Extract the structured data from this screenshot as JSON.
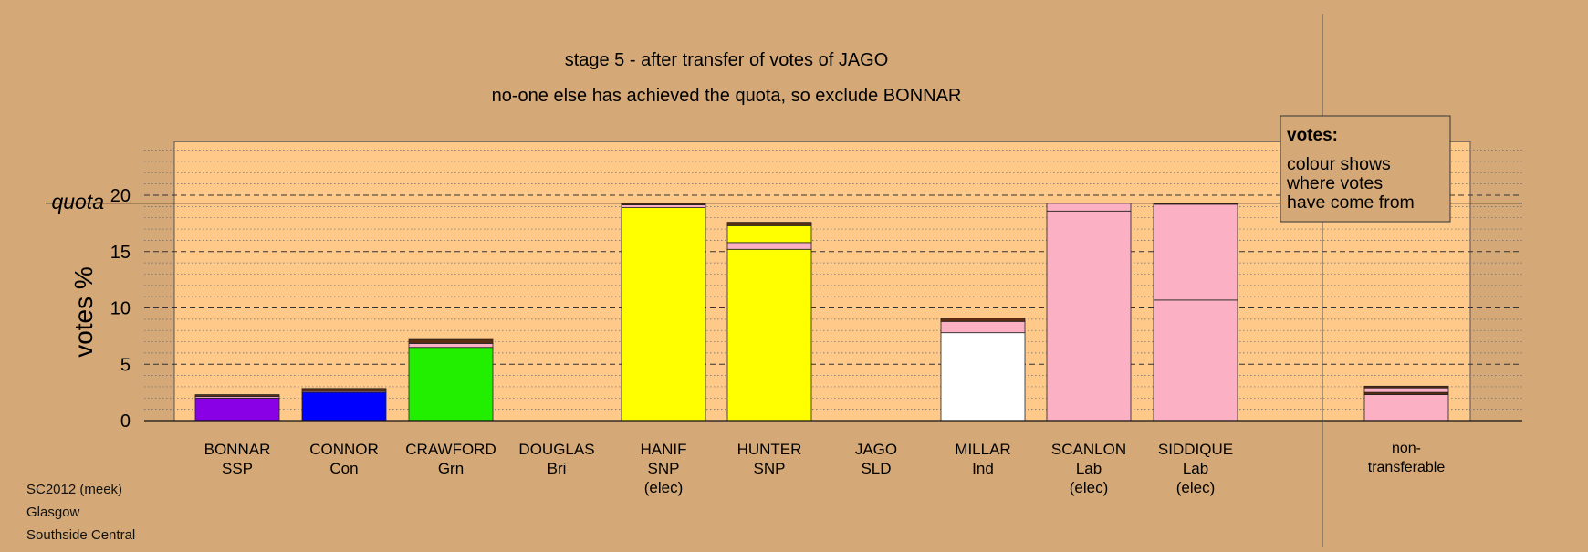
{
  "title": "stage 5 - after transfer of votes of JAGO",
  "subtitle": "no-one else has achieved the quota, so exclude BONNAR",
  "quota_label": "quota",
  "ylabel": "votes %",
  "legend": {
    "heading": "votes:",
    "lines": [
      "colour shows",
      "where votes",
      "have come from"
    ]
  },
  "footer": [
    "SC2012 (meek)",
    "Glasgow",
    "Southside Central"
  ],
  "colors": {
    "background": "#d4a977",
    "plot_area": "#ffc98a",
    "SSP": "#8a00e6",
    "Con": "#0000ff",
    "Grn": "#22ee00",
    "SNP": "#ffff00",
    "Ind": "#ffffff",
    "Lab": "#fbb1c3",
    "Bri": "#5a2d12",
    "SLD": "#ffa500"
  },
  "chart_data": {
    "type": "bar",
    "stacked": true,
    "ylabel": "votes %",
    "ylim": [
      0,
      25
    ],
    "yticks": [
      0,
      5,
      10,
      15,
      20
    ],
    "quota": 19.3,
    "grid": "dashed horizontal lines, dotted minor lines",
    "categories": [
      {
        "name": "BONNAR",
        "party": "SSP",
        "elected": false,
        "segments": [
          {
            "from": "SSP",
            "value": 2.0
          },
          {
            "from": "Lab",
            "value": 0.15
          },
          {
            "from": "Bri",
            "value": 0.15
          }
        ]
      },
      {
        "name": "CONNOR",
        "party": "Con",
        "elected": false,
        "segments": [
          {
            "from": "Con",
            "value": 2.5
          },
          {
            "from": "Lab",
            "value": 0.1
          },
          {
            "from": "Bri",
            "value": 0.25
          }
        ]
      },
      {
        "name": "CRAWFORD",
        "party": "Grn",
        "elected": false,
        "segments": [
          {
            "from": "Grn",
            "value": 6.5
          },
          {
            "from": "Lab",
            "value": 0.35
          },
          {
            "from": "Bri",
            "value": 0.35
          }
        ]
      },
      {
        "name": "DOUGLAS",
        "party": "Bri",
        "elected": false,
        "segments": []
      },
      {
        "name": "HANIF",
        "party": "SNP",
        "elected": true,
        "segments": [
          {
            "from": "SNP",
            "value": 18.9
          },
          {
            "from": "Lab",
            "value": 0.25
          },
          {
            "from": "Bri",
            "value": 0.15
          }
        ]
      },
      {
        "name": "HUNTER",
        "party": "SNP",
        "elected": false,
        "segments": [
          {
            "from": "SNP",
            "value": 15.2
          },
          {
            "from": "Lab",
            "value": 0.6
          },
          {
            "from": "SNP",
            "value": 1.5
          },
          {
            "from": "Bri",
            "value": 0.3
          }
        ]
      },
      {
        "name": "JAGO",
        "party": "SLD",
        "elected": false,
        "segments": []
      },
      {
        "name": "MILLAR",
        "party": "Ind",
        "elected": false,
        "segments": [
          {
            "from": "Ind",
            "value": 7.8
          },
          {
            "from": "Lab",
            "value": 1.0
          },
          {
            "from": "Bri",
            "value": 0.3
          }
        ]
      },
      {
        "name": "SCANLON",
        "party": "Lab",
        "elected": true,
        "segments": [
          {
            "from": "Lab",
            "value": 18.6
          },
          {
            "from": "Lab",
            "value": 0.7
          }
        ]
      },
      {
        "name": "SIDDIQUE",
        "party": "Lab",
        "elected": true,
        "segments": [
          {
            "from": "Lab",
            "value": 10.7
          },
          {
            "from": "Lab",
            "value": 8.5
          },
          {
            "from": "Bri",
            "value": 0.1
          }
        ]
      },
      {
        "name": "non-transferable",
        "party": "",
        "elected": false,
        "nontransferable": true,
        "segments": [
          {
            "from": "Lab",
            "value": 2.3
          },
          {
            "from": "Bri",
            "value": 0.2
          },
          {
            "from": "Lab",
            "value": 0.4
          },
          {
            "from": "Bri",
            "value": 0.15
          }
        ]
      }
    ],
    "elected_label": "(elec)"
  }
}
